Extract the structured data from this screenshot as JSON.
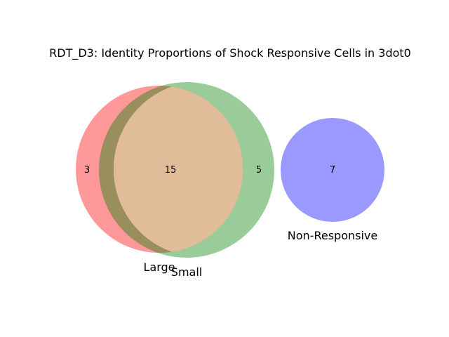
{
  "chart_data": {
    "type": "venn",
    "title": "RDT_D3: Identity Proportions of Shock Responsive Cells in 3dot0",
    "sets": [
      {
        "name": "Large",
        "color": "#ff0000",
        "size": 18
      },
      {
        "name": "Small",
        "color": "#008000",
        "size": 20
      },
      {
        "name": "Non-Responsive",
        "color": "#0000ff",
        "size": 7
      }
    ],
    "regions": [
      {
        "sets": [
          "Large"
        ],
        "value": 3
      },
      {
        "sets": [
          "Large",
          "Small"
        ],
        "value": 15
      },
      {
        "sets": [
          "Small"
        ],
        "value": 5
      },
      {
        "sets": [
          "Non-Responsive"
        ],
        "value": 7
      }
    ],
    "overlap_color": "#e0bc98",
    "circle_alpha": 0.4
  }
}
